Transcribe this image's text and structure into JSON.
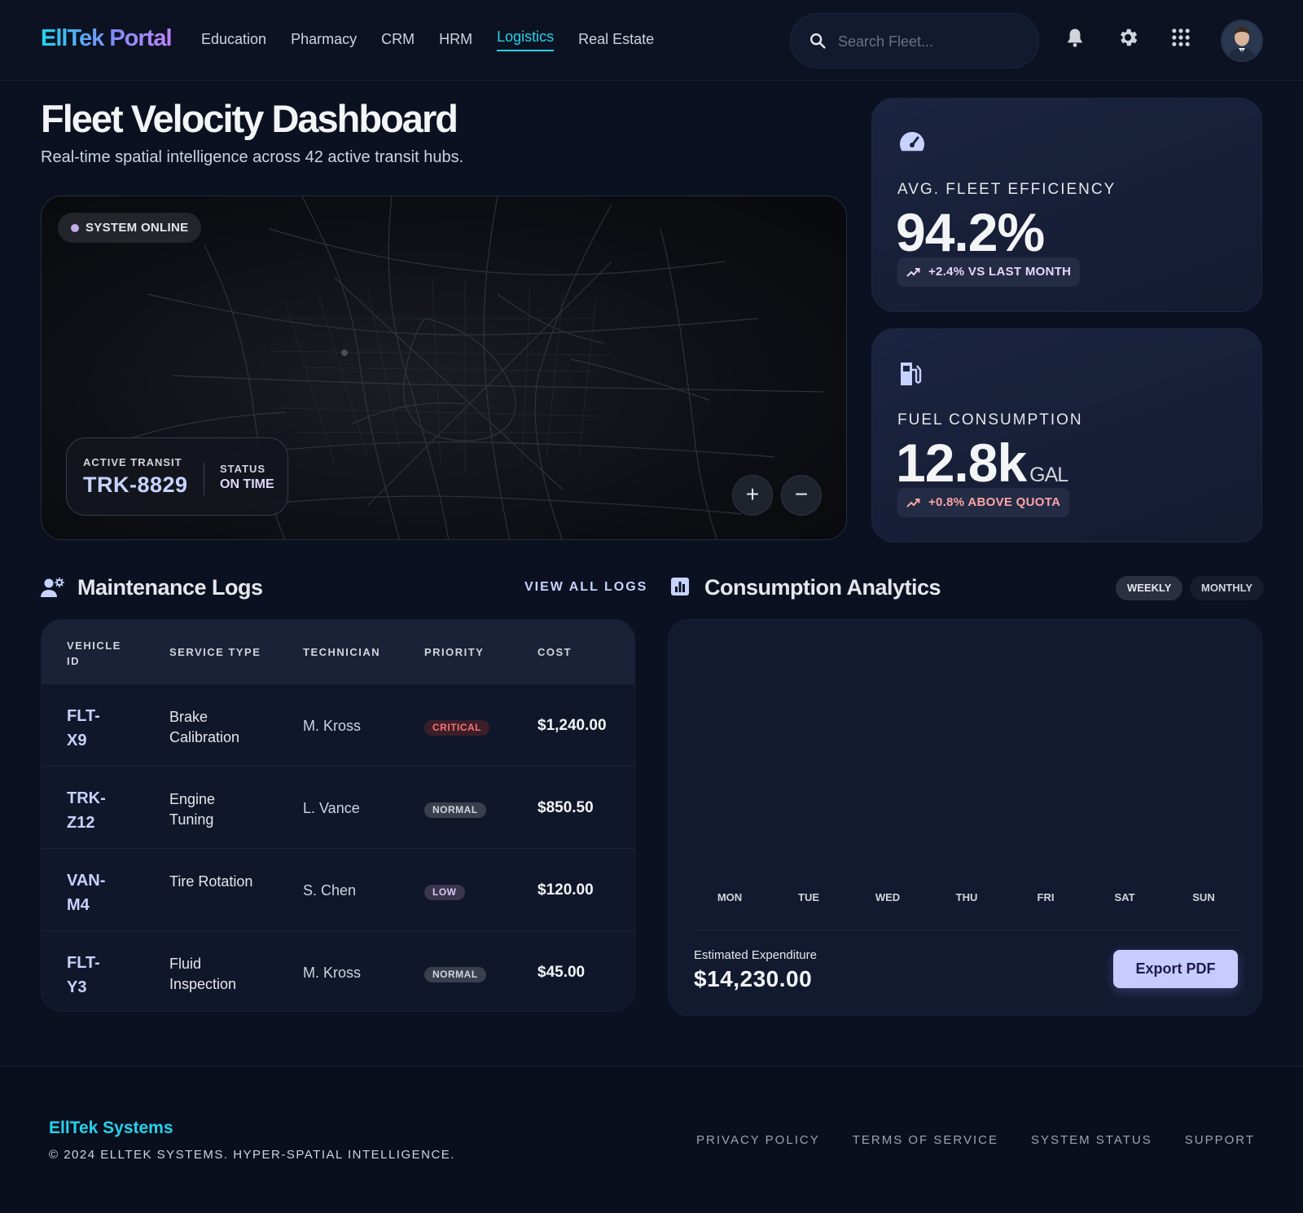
{
  "header": {
    "logo": "EllTek Portal",
    "nav": [
      {
        "label": "Education"
      },
      {
        "label": "Pharmacy"
      },
      {
        "label": "CRM"
      },
      {
        "label": "HRM"
      },
      {
        "label": "Logistics",
        "active": true
      },
      {
        "label": "Real Estate"
      }
    ],
    "search_placeholder": "Search Fleet...",
    "icons": [
      "search-icon",
      "bell-icon",
      "gear-icon",
      "apps-grid-icon",
      "avatar"
    ]
  },
  "hero": {
    "title": "Fleet Velocity Dashboard",
    "subtitle": "Real-time spatial intelligence across 42 active transit hubs."
  },
  "map": {
    "status_pill": "SYSTEM ONLINE",
    "transit_label": "ACTIVE TRANSIT",
    "transit_value": "TRK-8829",
    "status_label": "STATUS",
    "status_value": "ON TIME",
    "zoom_in": "+",
    "zoom_out": "−"
  },
  "stats": {
    "efficiency": {
      "label": "AVG. FLEET EFFICIENCY",
      "value": "94.2%",
      "trend": "+2.4% VS LAST MONTH",
      "trend_color": "#e9d5ff",
      "icon": "speedometer-icon"
    },
    "fuel": {
      "label": "FUEL CONSUMPTION",
      "value": "12.8k",
      "unit": "GAL",
      "trend": "+0.8% ABOVE QUOTA",
      "trend_color": "#fca5a5",
      "icon": "fuel-pump-icon"
    }
  },
  "maintenance": {
    "title": "Maintenance Logs",
    "view_all": "VIEW ALL LOGS",
    "columns": [
      "VEHICLE ID",
      "SERVICE TYPE",
      "TECHNICIAN",
      "PRIORITY",
      "COST"
    ],
    "rows": [
      {
        "vehicle": "FLT-X9",
        "service": "Brake Calibration",
        "technician": "M. Kross",
        "priority": "CRITICAL",
        "cost": "$1,240.00"
      },
      {
        "vehicle": "TRK-Z12",
        "service": "Engine Tuning",
        "technician": "L. Vance",
        "priority": "NORMAL",
        "cost": "$850.50"
      },
      {
        "vehicle": "VAN-M4",
        "service": "Tire Rotation",
        "technician": "S. Chen",
        "priority": "LOW",
        "cost": "$120.00"
      },
      {
        "vehicle": "FLT-Y3",
        "service": "Fluid Inspection",
        "technician": "M. Kross",
        "priority": "NORMAL",
        "cost": "$45.00"
      }
    ]
  },
  "analytics": {
    "title": "Consumption Analytics",
    "toggle_weekly": "WEEKLY",
    "toggle_monthly": "MONTHLY",
    "days": [
      "MON",
      "TUE",
      "WED",
      "THU",
      "FRI",
      "SAT",
      "SUN"
    ],
    "estimated_label": "Estimated Expenditure",
    "estimated_value": "$14,230.00",
    "export_label": "Export PDF"
  },
  "footer": {
    "brand": "EllTek Systems",
    "copyright": "© 2024 ELLTEK SYSTEMS. HYPER-SPATIAL INTELLIGENCE.",
    "links": [
      "PRIVACY POLICY",
      "TERMS OF SERVICE",
      "SYSTEM STATUS",
      "SUPPORT"
    ]
  },
  "colors": {
    "accent_cyan": "#22d3ee",
    "accent_indigo": "#c7d2fe",
    "critical": "#f87171",
    "background": "#0b1120"
  }
}
